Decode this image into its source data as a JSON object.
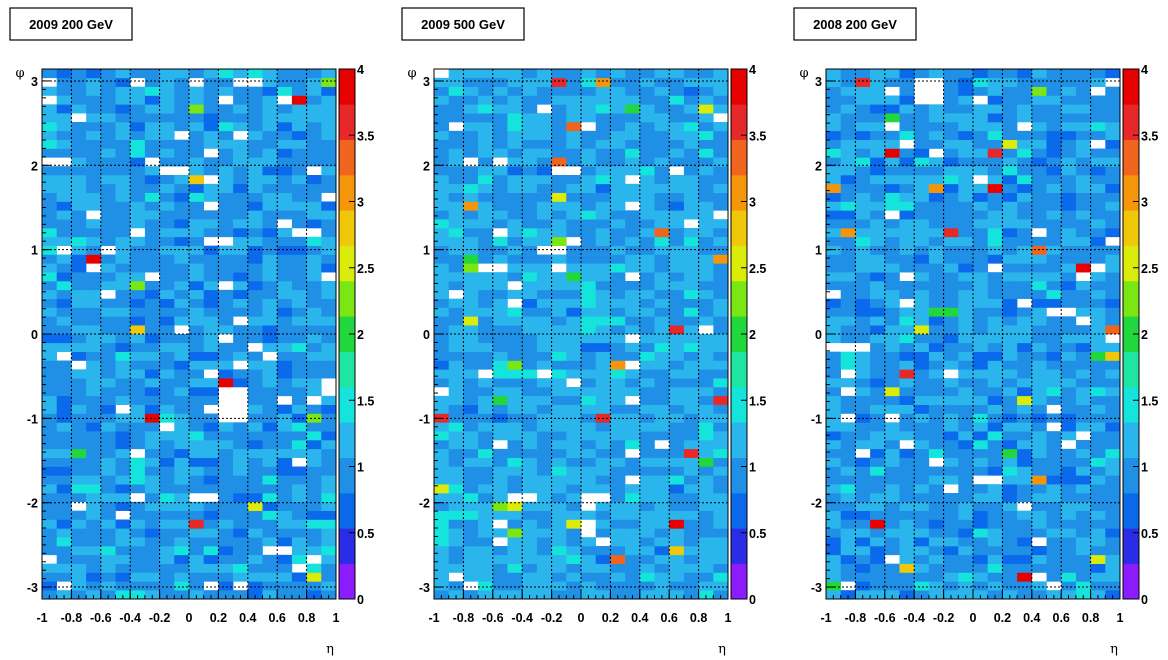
{
  "chart_data": [
    {
      "type": "heatmap",
      "title": "2009 200 GeV",
      "xlabel": "η",
      "ylabel": "φ",
      "xlim": [
        -1,
        1
      ],
      "ylim": [
        -3.1416,
        3.1416
      ],
      "zlim": [
        0,
        4
      ],
      "xticks": [
        "-1",
        "-0.8",
        "-0.6",
        "-0.4",
        "-0.2",
        "0",
        "0.2",
        "0.4",
        "0.6",
        "0.8",
        "1"
      ],
      "yticks": [
        "-3",
        "-2",
        "-1",
        "0",
        "1",
        "2",
        "3"
      ],
      "zticks": [
        "0",
        "0.5",
        "1",
        "1.5",
        "2",
        "2.5",
        "3",
        "3.5",
        "4"
      ],
      "bins": {
        "x": 20,
        "y": 60
      },
      "typical_value": 1.0,
      "empty_bins": [
        {
          "eta": [
            0.2,
            0.4
          ],
          "phi": [
            -1.0,
            -0.6
          ]
        },
        {
          "eta": [
            -0.2,
            0.0
          ],
          "phi": [
            1.85,
            1.95
          ]
        },
        {
          "eta": [
            0.25,
            0.35
          ],
          "phi": [
            0.55,
            0.65
          ]
        },
        {
          "eta": [
            -0.55,
            -0.4
          ],
          "phi": [
            3.1,
            3.15
          ]
        },
        {
          "eta": [
            -0.05,
            0.15
          ],
          "phi": [
            -1.95,
            -1.9
          ]
        }
      ],
      "grid": true,
      "colorbar": true
    },
    {
      "type": "heatmap",
      "title": "2009 500 GeV",
      "xlabel": "η",
      "ylabel": "φ",
      "xlim": [
        -1,
        1
      ],
      "ylim": [
        -3.1416,
        3.1416
      ],
      "zlim": [
        0,
        4
      ],
      "xticks": [
        "-1",
        "-0.8",
        "-0.6",
        "-0.4",
        "-0.2",
        "0",
        "0.2",
        "0.4",
        "0.6",
        "0.8",
        "1"
      ],
      "yticks": [
        "-3",
        "-2",
        "-1",
        "0",
        "1",
        "2",
        "3"
      ],
      "zticks": [
        "0",
        "0.5",
        "1",
        "1.5",
        "2",
        "2.5",
        "3",
        "3.5",
        "4"
      ],
      "bins": {
        "x": 20,
        "y": 60
      },
      "typical_value": 1.1,
      "empty_bins": [
        {
          "eta": [
            -0.2,
            0.0
          ],
          "phi": [
            1.85,
            1.95
          ]
        },
        {
          "eta": [
            -0.55,
            -0.4
          ],
          "phi": [
            3.1,
            3.15
          ]
        },
        {
          "eta": [
            0.0,
            0.2
          ],
          "phi": [
            -1.95,
            -1.9
          ]
        }
      ],
      "grid": true,
      "colorbar": true
    },
    {
      "type": "heatmap",
      "title": "2008 200 GeV",
      "xlabel": "η",
      "ylabel": "φ",
      "xlim": [
        -1,
        1
      ],
      "ylim": [
        -3.1416,
        3.1416
      ],
      "zlim": [
        0,
        4
      ],
      "xticks": [
        "-1",
        "-0.8",
        "-0.6",
        "-0.4",
        "-0.2",
        "0",
        "0.2",
        "0.4",
        "0.6",
        "0.8",
        "1"
      ],
      "yticks": [
        "-3",
        "-2",
        "-1",
        "0",
        "1",
        "2",
        "3"
      ],
      "zticks": [
        "0",
        "0.5",
        "1",
        "1.5",
        "2",
        "2.5",
        "3",
        "3.5",
        "4"
      ],
      "bins": {
        "x": 20,
        "y": 60
      },
      "typical_value": 1.0,
      "empty_bins": [
        {
          "eta": [
            -0.4,
            -0.2
          ],
          "phi": [
            2.7,
            3.0
          ]
        },
        {
          "eta": [
            0.45,
            0.65
          ],
          "phi": [
            0.25,
            0.35
          ]
        },
        {
          "eta": [
            -0.95,
            -0.75
          ],
          "phi": [
            -0.25,
            -0.15
          ]
        },
        {
          "eta": [
            0.0,
            0.2
          ],
          "phi": [
            -1.75,
            -1.65
          ]
        }
      ],
      "grid": true,
      "colorbar": true
    }
  ],
  "palette": [
    "#8c1cff",
    "#2a2ce6",
    "#0a6aeb",
    "#2090e6",
    "#2ab6ec",
    "#14e4dc",
    "#1ee6a0",
    "#20d73c",
    "#7ae614",
    "#dcec0a",
    "#f0c80a",
    "#f5960a",
    "#f0641e",
    "#e62828",
    "#e60000"
  ],
  "background_color": "#ffffff"
}
